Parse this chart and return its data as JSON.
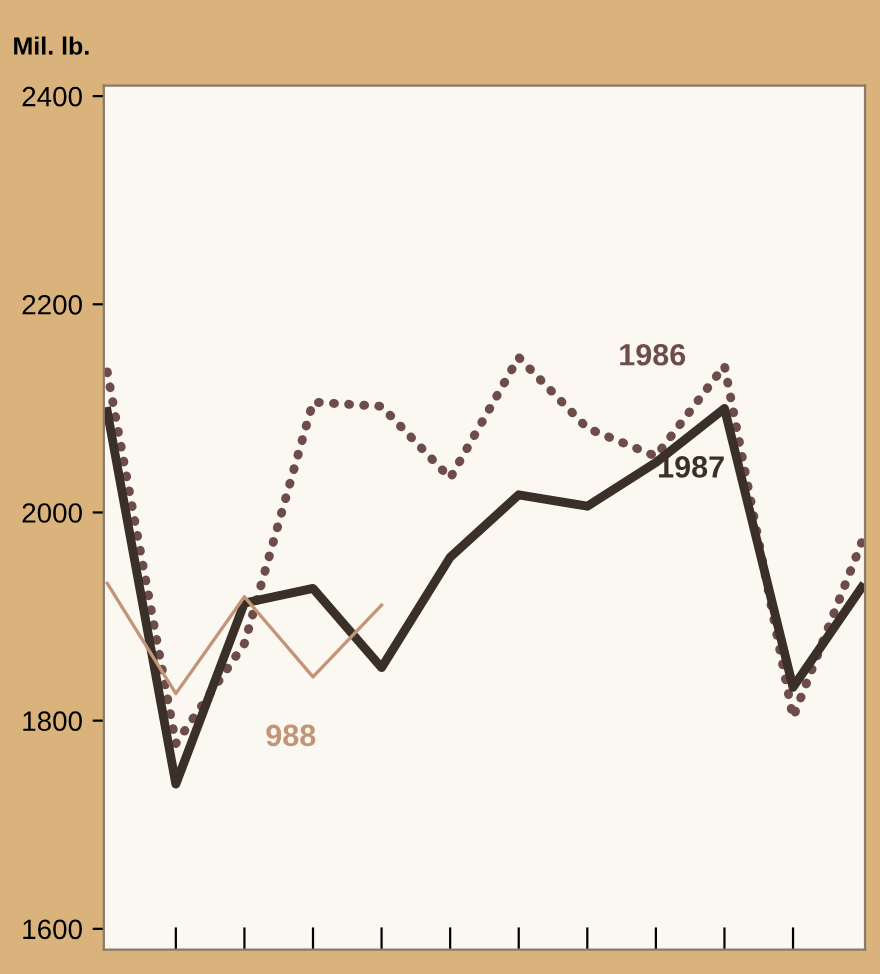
{
  "chart_data": {
    "type": "line",
    "ylabel": "Mil. lb.",
    "categories": [
      null,
      null,
      null,
      null,
      null,
      null,
      null,
      null,
      null,
      null,
      null,
      null
    ],
    "series": [
      {
        "name": "1986",
        "color": "#6e4c4a",
        "line_style": "dotted",
        "values": [
          2135,
          1778,
          1874,
          2106,
          2102,
          2033,
          2149,
          2081,
          2054,
          2141,
          1803,
          1971
        ]
      },
      {
        "name": "1987",
        "color": "#3a3028",
        "line_style": "solid",
        "values": [
          2097,
          1739,
          1913,
          1927,
          1851,
          1957,
          2017,
          2006,
          2048,
          2100,
          1832,
          1928
        ]
      },
      {
        "name": "988",
        "color": "#c39478",
        "line_style": "solid",
        "values": [
          1932,
          1826,
          1919,
          1842,
          1911,
          null,
          null,
          null,
          null,
          null,
          null,
          null
        ]
      }
    ],
    "ylim": [
      1580,
      2410
    ],
    "yticks": [
      1600,
      1800,
      2000,
      2200,
      2400
    ],
    "grid": false,
    "legend": false,
    "tick_labels": "y",
    "marker": "none"
  }
}
